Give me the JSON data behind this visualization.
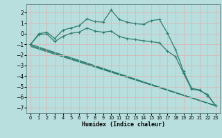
{
  "xlabel": "Humidex (Indice chaleur)",
  "xlim": [
    -0.5,
    23.5
  ],
  "ylim": [
    -7.5,
    2.8
  ],
  "yticks": [
    2,
    1,
    0,
    -1,
    -2,
    -3,
    -4,
    -5,
    -6,
    -7
  ],
  "xticks": [
    0,
    1,
    2,
    3,
    4,
    5,
    6,
    7,
    8,
    9,
    10,
    11,
    12,
    13,
    14,
    15,
    16,
    17,
    18,
    19,
    20,
    21,
    22,
    23
  ],
  "bg_color": "#b8dede",
  "grid_color": "#d8b8b8",
  "line_color": "#2e7d6e",
  "line1_x": [
    0,
    1,
    2,
    3,
    4,
    5,
    6,
    7,
    8,
    9,
    10,
    11,
    12,
    13,
    14,
    15,
    16,
    17,
    18,
    19,
    20,
    21,
    22,
    23
  ],
  "line1_y": [
    -1.0,
    0.0,
    0.15,
    -0.45,
    0.35,
    0.55,
    0.75,
    1.4,
    1.15,
    1.1,
    2.25,
    1.35,
    1.1,
    0.95,
    0.9,
    1.25,
    1.35,
    0.05,
    -1.5,
    -3.55,
    -5.15,
    -5.3,
    -5.85,
    -6.8
  ],
  "line2_x": [
    0,
    1,
    2,
    3,
    4,
    5,
    6,
    7,
    8,
    9,
    10,
    11,
    12,
    13,
    14,
    15,
    16,
    17,
    18,
    19,
    20,
    21,
    22,
    23
  ],
  "line2_y": [
    -1.0,
    -0.1,
    0.0,
    -0.75,
    -0.25,
    0.05,
    0.15,
    0.55,
    0.25,
    0.15,
    0.25,
    -0.25,
    -0.45,
    -0.55,
    -0.65,
    -0.75,
    -0.85,
    -1.65,
    -2.15,
    -3.75,
    -5.25,
    -5.35,
    -5.75,
    -6.8
  ],
  "line3_x": [
    0,
    23
  ],
  "line3_y": [
    -1.0,
    -6.8
  ],
  "line4_x": [
    0,
    23
  ],
  "line4_y": [
    -1.1,
    -6.8
  ],
  "line5_x": [
    0,
    23
  ],
  "line5_y": [
    -1.2,
    -6.8
  ]
}
